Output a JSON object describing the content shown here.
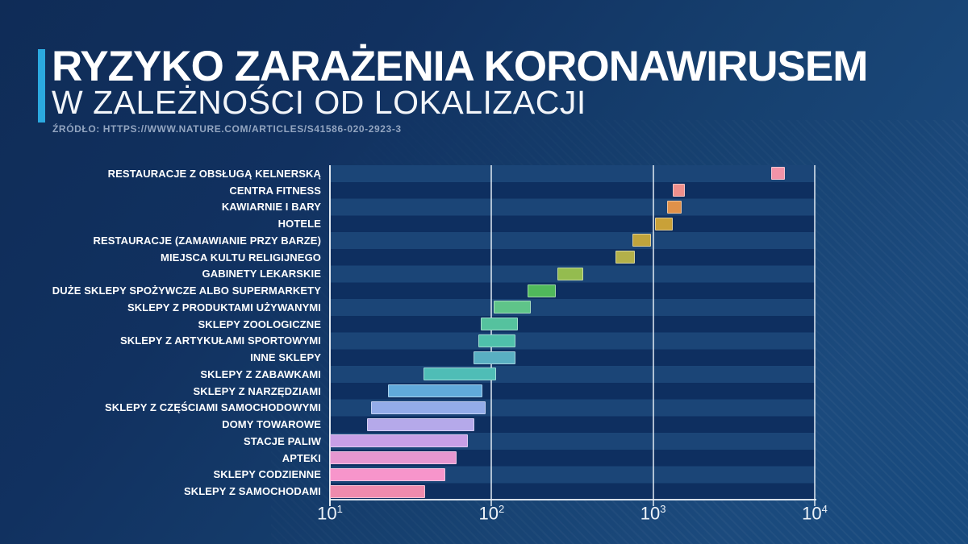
{
  "page": {
    "title": "RYZYKO ZARAŻENIA KORONAWIRUSEM",
    "subtitle": "W ZALEŻNOŚCI OD LOKALIZACJI",
    "source": "ŹRÓDŁO: HTTPS://WWW.NATURE.COM/ARTICLES/S41586-020-2923-3",
    "accent_color": "#2BA9E0"
  },
  "chart_data": {
    "type": "bar",
    "orientation": "horizontal-range",
    "scale": "log10",
    "title": "RYZYKO ZARAŻENIA KORONAWIRUSEM W ZALEŻNOŚCI OD LOKALIZACJI",
    "xlabel": "",
    "ylabel": "",
    "xlim": [
      10,
      10000
    ],
    "grid": true,
    "x_ticks": [
      {
        "base": "10",
        "exp": 1,
        "value": 10
      },
      {
        "base": "10",
        "exp": 2,
        "value": 100
      },
      {
        "base": "10",
        "exp": 3,
        "value": 1000
      },
      {
        "base": "10",
        "exp": 4,
        "value": 10000
      }
    ],
    "bars": [
      {
        "label": "RESTAURACJE Z OBSŁUGĄ KELNERSKĄ",
        "min": 5400,
        "max": 6500,
        "color": "#F193A8"
      },
      {
        "label": "CENTRA FITNESS",
        "min": 1320,
        "max": 1580,
        "color": "#EF8F8C"
      },
      {
        "label": "KAWIARNIE I BARY",
        "min": 1220,
        "max": 1500,
        "color": "#E0914A"
      },
      {
        "label": "HOTELE",
        "min": 1030,
        "max": 1330,
        "color": "#C9A138"
      },
      {
        "label": "RESTAURACJE (ZAMAWIANIE PRZY BARZE)",
        "min": 745,
        "max": 965,
        "color": "#C0A43C"
      },
      {
        "label": "MIEJSCA KULTU RELIGIJNEGO",
        "min": 585,
        "max": 775,
        "color": "#B3B04A"
      },
      {
        "label": "GABINETY LEKARSKIE",
        "min": 255,
        "max": 370,
        "color": "#94BC4F"
      },
      {
        "label": "DUŻE SKLEPY SPOŻYWCZE ALBO SUPERMARKETY",
        "min": 167,
        "max": 250,
        "color": "#50B95B"
      },
      {
        "label": "SKLEPY Z PRODUKTAMI UŻYWANYMI",
        "min": 103,
        "max": 174,
        "color": "#5FC489"
      },
      {
        "label": "SKLEPY ZOOLOGICZNE",
        "min": 86,
        "max": 146,
        "color": "#55C29E"
      },
      {
        "label": "SKLEPY Z ARTYKUŁAMI SPORTOWYMI",
        "min": 83,
        "max": 140,
        "color": "#4FC0AB"
      },
      {
        "label": "INNE SKLEPY",
        "min": 77,
        "max": 140,
        "color": "#59AFC2"
      },
      {
        "label": "SKLEPY Z ZABAWKAMI",
        "min": 38,
        "max": 107,
        "color": "#4FBDB6"
      },
      {
        "label": "SKLEPY Z NARZĘDZIAMI",
        "min": 23,
        "max": 88,
        "color": "#61AADB"
      },
      {
        "label": "SKLEPY Z CZĘŚCIAMI SAMOCHODOWYMI",
        "min": 18,
        "max": 92,
        "color": "#93ACE9"
      },
      {
        "label": "DOMY TOWAROWE",
        "min": 17,
        "max": 78,
        "color": "#B5A9EA"
      },
      {
        "label": "STACJE PALIW",
        "min": 10,
        "max": 71,
        "color": "#C89FE6"
      },
      {
        "label": "APTEKI",
        "min": 10,
        "max": 61,
        "color": "#E697D0"
      },
      {
        "label": "SKLEPY CODZIENNE",
        "min": 10,
        "max": 52,
        "color": "#F795CB"
      },
      {
        "label": "SKLEPY Z SAMOCHODAMI",
        "min": 10,
        "max": 39,
        "color": "#EF8BAD"
      }
    ]
  },
  "colors": {
    "stripe_light": "#1B4577",
    "stripe_dark": "#0E2F60",
    "gridline": "#E2EBF3",
    "title_text": "#FFFFFF",
    "source_text": "#93A5C0"
  }
}
